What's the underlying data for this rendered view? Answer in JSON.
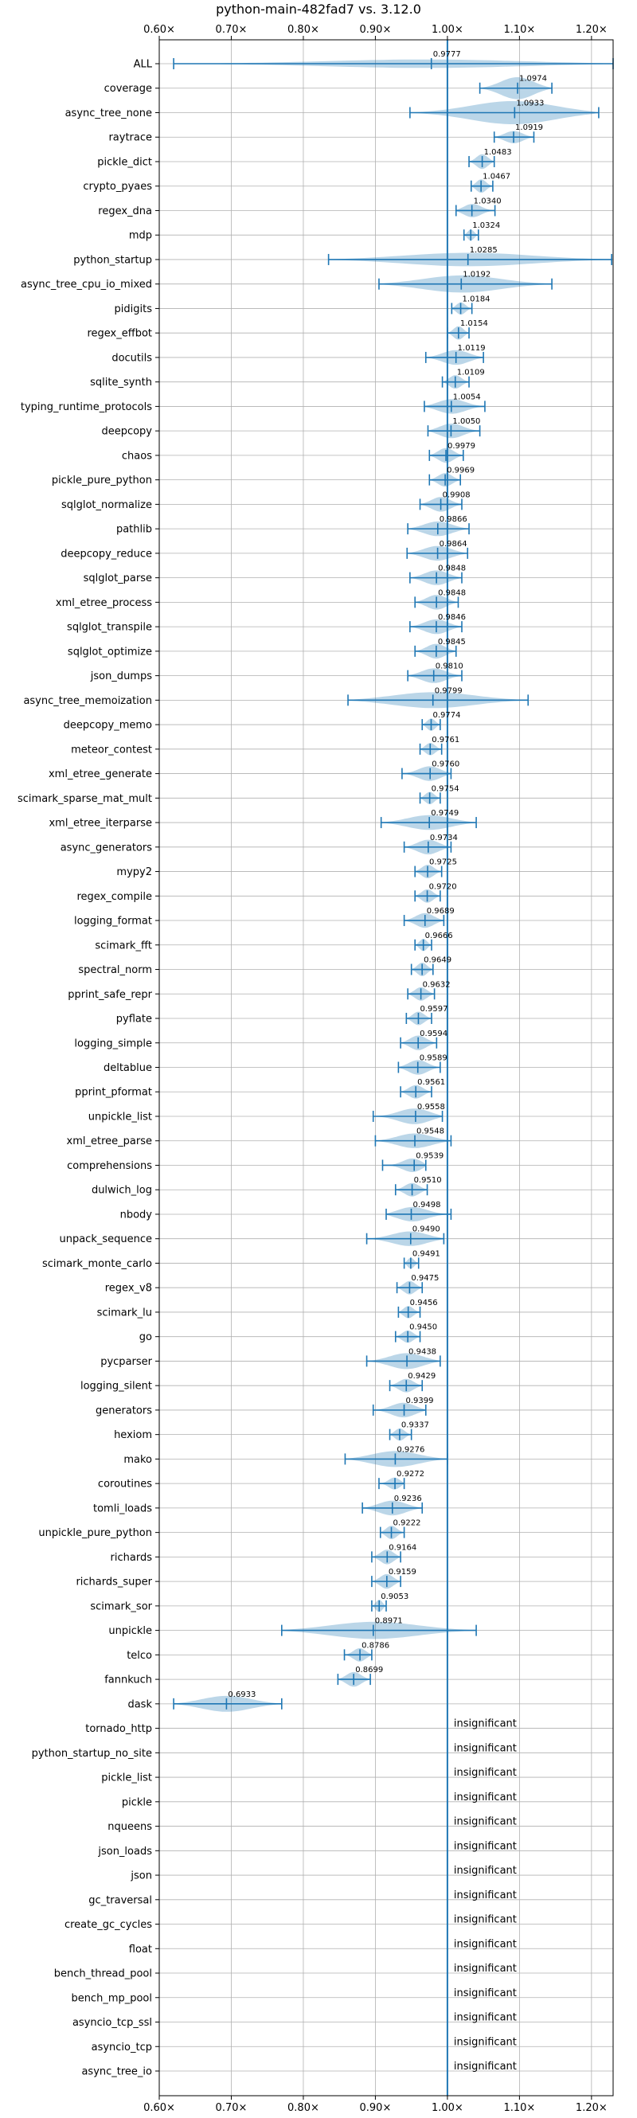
{
  "chart_data": {
    "type": "violin",
    "title": "python-main-482fad7 vs. 3.12.0",
    "xlim": [
      0.6,
      1.23
    ],
    "x_ticks": [
      0.6,
      0.7,
      0.8,
      0.9,
      1.0,
      1.1,
      1.2
    ],
    "x_tick_labels": [
      "0.60×",
      "0.70×",
      "0.80×",
      "0.90×",
      "1.00×",
      "1.10×",
      "1.20×"
    ],
    "reference_line": 1.0,
    "grid": true,
    "insignificant_label": "insignificant",
    "benchmarks": [
      {
        "name": "ALL",
        "value": 0.9777,
        "label": "0.9777",
        "min": 0.62,
        "max": 1.23,
        "width": 0.35
      },
      {
        "name": "coverage",
        "value": 1.0974,
        "label": "1.0974",
        "min": 1.045,
        "max": 1.145,
        "width": 0.9
      },
      {
        "name": "async_tree_none",
        "value": 1.0933,
        "label": "1.0933",
        "min": 0.948,
        "max": 1.21,
        "width": 0.95
      },
      {
        "name": "raytrace",
        "value": 1.0919,
        "label": "1.0919",
        "min": 1.065,
        "max": 1.12,
        "width": 0.5
      },
      {
        "name": "pickle_dict",
        "value": 1.0483,
        "label": "1.0483",
        "min": 1.03,
        "max": 1.065,
        "width": 0.6
      },
      {
        "name": "crypto_pyaes",
        "value": 1.0467,
        "label": "1.0467",
        "min": 1.033,
        "max": 1.063,
        "width": 0.55
      },
      {
        "name": "regex_dna",
        "value": 1.034,
        "label": "1.0340",
        "min": 1.012,
        "max": 1.066,
        "width": 0.55
      },
      {
        "name": "mdp",
        "value": 1.0324,
        "label": "1.0324",
        "min": 1.023,
        "max": 1.043,
        "width": 0.45
      },
      {
        "name": "python_startup",
        "value": 1.0285,
        "label": "1.0285",
        "min": 0.835,
        "max": 1.228,
        "width": 0.55
      },
      {
        "name": "async_tree_cpu_io_mixed",
        "value": 1.0192,
        "label": "1.0192",
        "min": 0.905,
        "max": 1.145,
        "width": 0.7
      },
      {
        "name": "pidigits",
        "value": 1.0184,
        "label": "1.0184",
        "min": 1.006,
        "max": 1.034,
        "width": 0.5
      },
      {
        "name": "regex_effbot",
        "value": 1.0154,
        "label": "1.0154",
        "min": 1.0,
        "max": 1.03,
        "width": 0.55
      },
      {
        "name": "docutils",
        "value": 1.0119,
        "label": "1.0119",
        "min": 0.97,
        "max": 1.05,
        "width": 0.6
      },
      {
        "name": "sqlite_synth",
        "value": 1.0109,
        "label": "1.0109",
        "min": 0.993,
        "max": 1.03,
        "width": 0.55
      },
      {
        "name": "typing_runtime_protocols",
        "value": 1.0054,
        "label": "1.0054",
        "min": 0.968,
        "max": 1.052,
        "width": 0.6
      },
      {
        "name": "deepcopy",
        "value": 1.005,
        "label": "1.0050",
        "min": 0.973,
        "max": 1.045,
        "width": 0.6
      },
      {
        "name": "chaos",
        "value": 0.9979,
        "label": "0.9979",
        "min": 0.975,
        "max": 1.022,
        "width": 0.6
      },
      {
        "name": "pickle_pure_python",
        "value": 0.9969,
        "label": "0.9969",
        "min": 0.975,
        "max": 1.018,
        "width": 0.55
      },
      {
        "name": "sqlglot_normalize",
        "value": 0.9908,
        "label": "0.9908",
        "min": 0.962,
        "max": 1.02,
        "width": 0.6
      },
      {
        "name": "pathlib",
        "value": 0.9866,
        "label": "0.9866",
        "min": 0.945,
        "max": 1.03,
        "width": 0.6
      },
      {
        "name": "deepcopy_reduce",
        "value": 0.9864,
        "label": "0.9864",
        "min": 0.944,
        "max": 1.028,
        "width": 0.6
      },
      {
        "name": "sqlglot_parse",
        "value": 0.9848,
        "label": "0.9848",
        "min": 0.948,
        "max": 1.02,
        "width": 0.6
      },
      {
        "name": "xml_etree_process",
        "value": 0.9848,
        "label": "0.9848",
        "min": 0.955,
        "max": 1.015,
        "width": 0.6
      },
      {
        "name": "sqlglot_transpile",
        "value": 0.9846,
        "label": "0.9846",
        "min": 0.948,
        "max": 1.02,
        "width": 0.6
      },
      {
        "name": "sqlglot_optimize",
        "value": 0.9845,
        "label": "0.9845",
        "min": 0.955,
        "max": 1.012,
        "width": 0.6
      },
      {
        "name": "json_dumps",
        "value": 0.981,
        "label": "0.9810",
        "min": 0.945,
        "max": 1.02,
        "width": 0.6
      },
      {
        "name": "async_tree_memoization",
        "value": 0.9799,
        "label": "0.9799",
        "min": 0.862,
        "max": 1.112,
        "width": 0.65
      },
      {
        "name": "deepcopy_memo",
        "value": 0.9774,
        "label": "0.9774",
        "min": 0.965,
        "max": 0.99,
        "width": 0.5
      },
      {
        "name": "meteor_contest",
        "value": 0.9761,
        "label": "0.9761",
        "min": 0.962,
        "max": 0.992,
        "width": 0.5
      },
      {
        "name": "xml_etree_generate",
        "value": 0.976,
        "label": "0.9760",
        "min": 0.937,
        "max": 1.005,
        "width": 0.6
      },
      {
        "name": "scimark_sparse_mat_mult",
        "value": 0.9754,
        "label": "0.9754",
        "min": 0.962,
        "max": 0.99,
        "width": 0.5
      },
      {
        "name": "xml_etree_iterparse",
        "value": 0.9749,
        "label": "0.9749",
        "min": 0.908,
        "max": 1.04,
        "width": 0.6
      },
      {
        "name": "async_generators",
        "value": 0.9734,
        "label": "0.9734",
        "min": 0.94,
        "max": 1.005,
        "width": 0.6
      },
      {
        "name": "mypy2",
        "value": 0.9725,
        "label": "0.9725",
        "min": 0.955,
        "max": 0.992,
        "width": 0.55
      },
      {
        "name": "regex_compile",
        "value": 0.972,
        "label": "0.9720",
        "min": 0.955,
        "max": 0.99,
        "width": 0.55
      },
      {
        "name": "logging_format",
        "value": 0.9689,
        "label": "0.9689",
        "min": 0.94,
        "max": 0.995,
        "width": 0.6
      },
      {
        "name": "scimark_fft",
        "value": 0.9666,
        "label": "0.9666",
        "min": 0.955,
        "max": 0.978,
        "width": 0.5
      },
      {
        "name": "spectral_norm",
        "value": 0.9649,
        "label": "0.9649",
        "min": 0.95,
        "max": 0.98,
        "width": 0.55
      },
      {
        "name": "pprint_safe_repr",
        "value": 0.9632,
        "label": "0.9632",
        "min": 0.945,
        "max": 0.982,
        "width": 0.55
      },
      {
        "name": "pyflate",
        "value": 0.9597,
        "label": "0.9597",
        "min": 0.943,
        "max": 0.978,
        "width": 0.55
      },
      {
        "name": "logging_simple",
        "value": 0.9594,
        "label": "0.9594",
        "min": 0.935,
        "max": 0.985,
        "width": 0.6
      },
      {
        "name": "deltablue",
        "value": 0.9589,
        "label": "0.9589",
        "min": 0.932,
        "max": 0.99,
        "width": 0.6
      },
      {
        "name": "pprint_pformat",
        "value": 0.9561,
        "label": "0.9561",
        "min": 0.935,
        "max": 0.978,
        "width": 0.55
      },
      {
        "name": "unpickle_list",
        "value": 0.9558,
        "label": "0.9558",
        "min": 0.897,
        "max": 0.993,
        "width": 0.65
      },
      {
        "name": "xml_etree_parse",
        "value": 0.9548,
        "label": "0.9548",
        "min": 0.9,
        "max": 1.005,
        "width": 0.6
      },
      {
        "name": "comprehensions",
        "value": 0.9539,
        "label": "0.9539",
        "min": 0.91,
        "max": 0.97,
        "width": 0.6
      },
      {
        "name": "dulwich_log",
        "value": 0.951,
        "label": "0.9510",
        "min": 0.928,
        "max": 0.972,
        "width": 0.55
      },
      {
        "name": "nbody",
        "value": 0.9498,
        "label": "0.9498",
        "min": 0.915,
        "max": 1.005,
        "width": 0.6
      },
      {
        "name": "unpack_sequence",
        "value": 0.949,
        "label": "0.9490",
        "min": 0.888,
        "max": 0.995,
        "width": 0.6
      },
      {
        "name": "scimark_monte_carlo",
        "value": 0.9491,
        "label": "0.9491",
        "min": 0.94,
        "max": 0.96,
        "width": 0.45
      },
      {
        "name": "regex_v8",
        "value": 0.9475,
        "label": "0.9475",
        "min": 0.93,
        "max": 0.965,
        "width": 0.55
      },
      {
        "name": "scimark_lu",
        "value": 0.9456,
        "label": "0.9456",
        "min": 0.932,
        "max": 0.962,
        "width": 0.5
      },
      {
        "name": "go",
        "value": 0.945,
        "label": "0.9450",
        "min": 0.928,
        "max": 0.962,
        "width": 0.5
      },
      {
        "name": "pycparser",
        "value": 0.9438,
        "label": "0.9438",
        "min": 0.888,
        "max": 0.99,
        "width": 0.65
      },
      {
        "name": "logging_silent",
        "value": 0.9429,
        "label": "0.9429",
        "min": 0.92,
        "max": 0.965,
        "width": 0.55
      },
      {
        "name": "generators",
        "value": 0.9399,
        "label": "0.9399",
        "min": 0.897,
        "max": 0.97,
        "width": 0.6
      },
      {
        "name": "hexiom",
        "value": 0.9337,
        "label": "0.9337",
        "min": 0.92,
        "max": 0.95,
        "width": 0.5
      },
      {
        "name": "mako",
        "value": 0.9276,
        "label": "0.9276",
        "min": 0.858,
        "max": 1.0,
        "width": 0.65
      },
      {
        "name": "coroutines",
        "value": 0.9272,
        "label": "0.9272",
        "min": 0.905,
        "max": 0.94,
        "width": 0.5
      },
      {
        "name": "tomli_loads",
        "value": 0.9236,
        "label": "0.9236",
        "min": 0.882,
        "max": 0.965,
        "width": 0.6
      },
      {
        "name": "unpickle_pure_python",
        "value": 0.9222,
        "label": "0.9222",
        "min": 0.907,
        "max": 0.94,
        "width": 0.55
      },
      {
        "name": "richards",
        "value": 0.9164,
        "label": "0.9164",
        "min": 0.895,
        "max": 0.935,
        "width": 0.6
      },
      {
        "name": "richards_super",
        "value": 0.9159,
        "label": "0.9159",
        "min": 0.895,
        "max": 0.935,
        "width": 0.6
      },
      {
        "name": "scimark_sor",
        "value": 0.9053,
        "label": "0.9053",
        "min": 0.895,
        "max": 0.915,
        "width": 0.5
      },
      {
        "name": "unpickle",
        "value": 0.8971,
        "label": "0.8971",
        "min": 0.77,
        "max": 1.04,
        "width": 0.7
      },
      {
        "name": "telco",
        "value": 0.8786,
        "label": "0.8786",
        "min": 0.857,
        "max": 0.895,
        "width": 0.55
      },
      {
        "name": "fannkuch",
        "value": 0.8699,
        "label": "0.8699",
        "min": 0.848,
        "max": 0.893,
        "width": 0.6
      },
      {
        "name": "dask",
        "value": 0.6933,
        "label": "0.6933",
        "min": 0.62,
        "max": 0.77,
        "width": 0.65
      },
      {
        "name": "tornado_http",
        "insignificant": true
      },
      {
        "name": "python_startup_no_site",
        "insignificant": true
      },
      {
        "name": "pickle_list",
        "insignificant": true
      },
      {
        "name": "pickle",
        "insignificant": true
      },
      {
        "name": "nqueens",
        "insignificant": true
      },
      {
        "name": "json_loads",
        "insignificant": true
      },
      {
        "name": "json",
        "insignificant": true
      },
      {
        "name": "gc_traversal",
        "insignificant": true
      },
      {
        "name": "create_gc_cycles",
        "insignificant": true
      },
      {
        "name": "float",
        "insignificant": true
      },
      {
        "name": "bench_thread_pool",
        "insignificant": true
      },
      {
        "name": "bench_mp_pool",
        "insignificant": true
      },
      {
        "name": "asyncio_tcp_ssl",
        "insignificant": true
      },
      {
        "name": "asyncio_tcp",
        "insignificant": true
      },
      {
        "name": "async_tree_io",
        "insignificant": true
      }
    ]
  }
}
